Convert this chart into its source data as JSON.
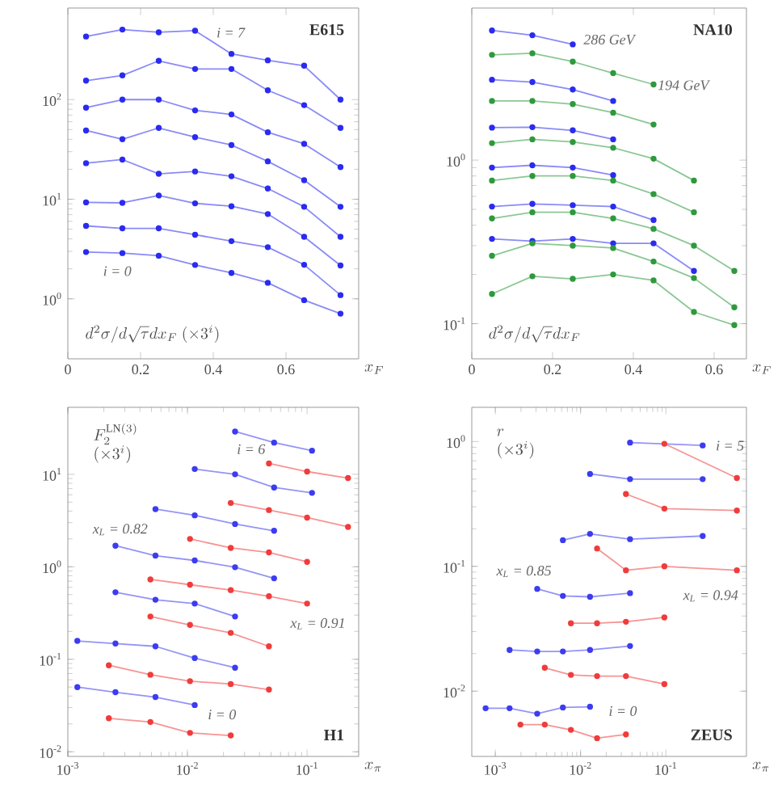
{
  "chart_data": [
    {
      "type": "line",
      "title": "E615",
      "ylabel": "d^2\\sigma/d\\sqrt{\\tau}dx_F\\ (\\times 3^i)",
      "xlabel": "x_F",
      "log": "y",
      "marker": "circle",
      "xlim": [
        0,
        0.8
      ],
      "ylim": [
        0.25,
        830
      ],
      "xticks": [
        0,
        0.2,
        0.4,
        0.6
      ],
      "yticks": [
        {
          "value": 1,
          "label": "10$^{0}$"
        },
        {
          "value": 10,
          "label": "10$^{1}$"
        },
        {
          "value": 100,
          "label": "10$^{2}$"
        }
      ],
      "annotations": [
        "i = 7",
        "i = 0"
      ],
      "series": [
        {
          "color": "#2b2bf0",
          "x": [
            0.05,
            0.15,
            0.25,
            0.35,
            0.45,
            0.55,
            0.65,
            0.75
          ],
          "values": [
            2.95,
            2.88,
            2.71,
            2.19,
            1.82,
            1.45,
            0.97,
            0.71
          ]
        },
        {
          "color": "#2b2bf0",
          "x": [
            0.05,
            0.15,
            0.25,
            0.35,
            0.45,
            0.55,
            0.65,
            0.75
          ],
          "values": [
            5.4,
            5.1,
            5.1,
            4.4,
            3.8,
            3.3,
            2.2,
            1.09
          ]
        },
        {
          "color": "#2b2bf0",
          "x": [
            0.05,
            0.15,
            0.25,
            0.35,
            0.45,
            0.55,
            0.65,
            0.75
          ],
          "values": [
            9.3,
            9.2,
            10.9,
            9.1,
            8.5,
            7.1,
            4.2,
            2.16
          ]
        },
        {
          "color": "#2b2bf0",
          "x": [
            0.05,
            0.15,
            0.25,
            0.35,
            0.45,
            0.55,
            0.65,
            0.75
          ],
          "values": [
            23,
            25,
            18,
            19,
            17,
            12.8,
            8.4,
            4.2
          ]
        },
        {
          "color": "#2b2bf0",
          "x": [
            0.05,
            0.15,
            0.25,
            0.35,
            0.45,
            0.55,
            0.65,
            0.75
          ],
          "values": [
            49,
            40,
            52,
            42,
            35,
            24,
            15.5,
            8.4
          ]
        },
        {
          "color": "#2b2bf0",
          "x": [
            0.05,
            0.15,
            0.25,
            0.35,
            0.45,
            0.55,
            0.65,
            0.75
          ],
          "values": [
            83,
            100,
            100,
            78,
            71,
            47,
            36,
            21
          ]
        },
        {
          "color": "#2b2bf0",
          "x": [
            0.05,
            0.15,
            0.25,
            0.35,
            0.45,
            0.55,
            0.65,
            0.75
          ],
          "values": [
            155,
            175,
            245,
            203,
            203,
            124,
            88,
            52
          ]
        },
        {
          "color": "#2b2bf0",
          "x": [
            0.05,
            0.15,
            0.25,
            0.35,
            0.45,
            0.55,
            0.65,
            0.75
          ],
          "values": [
            430,
            505,
            474,
            492,
            288,
            248,
            219,
            100
          ]
        }
      ]
    },
    {
      "type": "line",
      "title": "NA10",
      "ylabel": "d^2\\sigma/d\\sqrt{\\tau}dx_F",
      "xlabel": "x_F",
      "log": "y",
      "marker": "circle",
      "xlim": [
        0,
        0.68
      ],
      "ylim": [
        0.061,
        8.5
      ],
      "xticks": [
        0,
        0.2,
        0.4,
        0.6
      ],
      "yticks": [
        {
          "value": 0.1,
          "label": "10$^{-1}$"
        },
        {
          "value": 1,
          "label": "10$^{0}$"
        }
      ],
      "annotations": [
        "286 GeV",
        "194 GeV"
      ],
      "series": [
        {
          "color": "#2b2bf0",
          "x": [
            0.05,
            0.15,
            0.25
          ],
          "values": [
            6.2,
            5.8,
            5.1
          ]
        },
        {
          "color": "#2b2bf0",
          "x": [
            0.05,
            0.15,
            0.25,
            0.35
          ],
          "values": [
            3.1,
            3.0,
            2.7,
            2.3
          ]
        },
        {
          "color": "#2b2bf0",
          "x": [
            0.05,
            0.15,
            0.25,
            0.35
          ],
          "values": [
            1.58,
            1.59,
            1.52,
            1.34
          ]
        },
        {
          "color": "#2b2bf0",
          "x": [
            0.05,
            0.15,
            0.25,
            0.35
          ],
          "values": [
            0.9,
            0.93,
            0.9,
            0.81
          ]
        },
        {
          "color": "#2b2bf0",
          "x": [
            0.05,
            0.15,
            0.25,
            0.35,
            0.45
          ],
          "values": [
            0.52,
            0.54,
            0.53,
            0.52,
            0.43
          ]
        },
        {
          "color": "#2b2bf0",
          "x": [
            0.05,
            0.15,
            0.25,
            0.35,
            0.45,
            0.55
          ],
          "values": [
            0.33,
            0.32,
            0.33,
            0.31,
            0.31,
            0.21
          ]
        },
        {
          "color": "#2e9a3c",
          "x": [
            0.05,
            0.15,
            0.25,
            0.35,
            0.45
          ],
          "values": [
            4.4,
            4.5,
            4.0,
            3.4,
            2.9
          ]
        },
        {
          "color": "#2e9a3c",
          "x": [
            0.05,
            0.15,
            0.25,
            0.35,
            0.45
          ],
          "values": [
            2.3,
            2.3,
            2.2,
            1.95,
            1.65
          ]
        },
        {
          "color": "#2e9a3c",
          "x": [
            0.05,
            0.15,
            0.25,
            0.35,
            0.45,
            0.55
          ],
          "values": [
            1.27,
            1.34,
            1.29,
            1.19,
            1.02,
            0.75
          ]
        },
        {
          "color": "#2e9a3c",
          "x": [
            0.05,
            0.15,
            0.25,
            0.35,
            0.45,
            0.55
          ],
          "values": [
            0.75,
            0.8,
            0.8,
            0.75,
            0.62,
            0.48
          ]
        },
        {
          "color": "#2e9a3c",
          "x": [
            0.05,
            0.15,
            0.25,
            0.35,
            0.45,
            0.55,
            0.65
          ],
          "values": [
            0.44,
            0.48,
            0.48,
            0.44,
            0.38,
            0.3,
            0.21
          ]
        },
        {
          "color": "#2e9a3c",
          "x": [
            0.05,
            0.15,
            0.25,
            0.35,
            0.45,
            0.55,
            0.65
          ],
          "values": [
            0.26,
            0.31,
            0.3,
            0.29,
            0.24,
            0.19,
            0.126
          ]
        },
        {
          "color": "#2e9a3c",
          "x": [
            0.05,
            0.15,
            0.25,
            0.35,
            0.45,
            0.55,
            0.65
          ],
          "values": [
            0.152,
            0.195,
            0.188,
            0.2,
            0.184,
            0.118,
            0.098
          ]
        }
      ]
    },
    {
      "type": "line",
      "title": "H1",
      "ylabel": "\\begin{array}{l}F_2^{\\mathrm{LN}(3)}\\\\ (\\times 3^i)\\end{array}",
      "xlabel": "x_\\pi",
      "log": "xy",
      "marker": "circle",
      "xlim": [
        0.001,
        0.27
      ],
      "ylim": [
        0.0089,
        53
      ],
      "xticks": [
        {
          "value": 0.001,
          "label": "10$^{-3}$"
        },
        {
          "value": 0.01,
          "label": "10$^{-2}$"
        },
        {
          "value": 0.1,
          "label": "10$^{-1}$"
        }
      ],
      "yticks": [
        {
          "value": 0.01,
          "label": "10$^{-2}$"
        },
        {
          "value": 0.1,
          "label": "10$^{-1}$"
        },
        {
          "value": 1,
          "label": "10$^{0}$"
        },
        {
          "value": 10,
          "label": "10$^{1}$"
        }
      ],
      "annotations": [
        "i = 6",
        "x$_{L}$ = 0.82",
        "x$_{L}$ = 0.91",
        "i = 0"
      ],
      "series": [
        {
          "color": "#3c3cf0",
          "x": [
            0.0012,
            0.0025,
            0.0054,
            0.0115
          ],
          "values": [
            0.05,
            0.044,
            0.039,
            0.032
          ]
        },
        {
          "color": "#3c3cf0",
          "x": [
            0.0012,
            0.0025,
            0.0054,
            0.0115,
            0.025
          ],
          "values": [
            0.158,
            0.148,
            0.138,
            0.103,
            0.081
          ]
        },
        {
          "color": "#3c3cf0",
          "x": [
            0.0025,
            0.0054,
            0.0115,
            0.025
          ],
          "values": [
            0.53,
            0.44,
            0.4,
            0.29
          ]
        },
        {
          "color": "#3c3cf0",
          "x": [
            0.0025,
            0.0054,
            0.0115,
            0.025,
            0.053
          ],
          "values": [
            1.69,
            1.32,
            1.17,
            0.99,
            0.75
          ]
        },
        {
          "color": "#3c3cf0",
          "x": [
            0.0054,
            0.0115,
            0.025,
            0.053
          ],
          "values": [
            4.2,
            3.6,
            2.9,
            2.45
          ]
        },
        {
          "color": "#3c3cf0",
          "x": [
            0.0115,
            0.025,
            0.053,
            0.11
          ],
          "values": [
            11.4,
            10,
            7.2,
            6.3
          ]
        },
        {
          "color": "#3c3cf0",
          "x": [
            0.025,
            0.053,
            0.11
          ],
          "values": [
            29,
            22,
            18
          ]
        },
        {
          "color": "#f03c3c",
          "x": [
            0.0022,
            0.0049,
            0.0105,
            0.023
          ],
          "values": [
            0.023,
            0.021,
            0.016,
            0.015
          ]
        },
        {
          "color": "#f03c3c",
          "x": [
            0.0022,
            0.0049,
            0.0105,
            0.023,
            0.048
          ],
          "values": [
            0.086,
            0.068,
            0.058,
            0.054,
            0.047
          ]
        },
        {
          "color": "#f03c3c",
          "x": [
            0.0049,
            0.0105,
            0.023,
            0.048
          ],
          "values": [
            0.29,
            0.235,
            0.193,
            0.138
          ]
        },
        {
          "color": "#f03c3c",
          "x": [
            0.0049,
            0.0105,
            0.023,
            0.048,
            0.1
          ],
          "values": [
            0.73,
            0.64,
            0.56,
            0.48,
            0.4
          ]
        },
        {
          "color": "#f03c3c",
          "x": [
            0.0105,
            0.023,
            0.048,
            0.1
          ],
          "values": [
            2.0,
            1.6,
            1.43,
            1.13
          ]
        },
        {
          "color": "#f03c3c",
          "x": [
            0.023,
            0.048,
            0.1,
            0.22
          ],
          "values": [
            4.9,
            4.1,
            3.4,
            2.7
          ]
        },
        {
          "color": "#f03c3c",
          "x": [
            0.048,
            0.1,
            0.22
          ],
          "values": [
            13.1,
            10.7,
            9.1
          ]
        }
      ]
    },
    {
      "type": "line",
      "title": "ZEUS",
      "ylabel": "\\begin{array}{l}r\\\\ (\\times 3^i)\\end{array}",
      "xlabel": "x_\\pi",
      "log": "xy",
      "marker": "circle",
      "xlim": [
        0.00053,
        0.88
      ],
      "ylim": [
        0.003,
        1.88
      ],
      "xticks": [
        {
          "value": 0.001,
          "label": "10$^{-3}$"
        },
        {
          "value": 0.01,
          "label": "10$^{-2}$"
        },
        {
          "value": 0.1,
          "label": "10$^{-1}$"
        }
      ],
      "yticks": [
        {
          "value": 0.01,
          "label": "10$^{-2}$"
        },
        {
          "value": 0.1,
          "label": "10$^{-1}$"
        },
        {
          "value": 1,
          "label": "10$^{0}$"
        }
      ],
      "annotations": [
        "i = 5",
        "x$_{L}$ = 0.85",
        "x$_{L}$ = 0.94",
        "i = 0"
      ],
      "series": [
        {
          "color": "#3c3cf0",
          "x": [
            0.00077,
            0.00147,
            0.0031,
            0.0062,
            0.0129
          ],
          "values": [
            0.0073,
            0.0073,
            0.0066,
            0.0074,
            0.0075
          ]
        },
        {
          "color": "#3c3cf0",
          "x": [
            0.00147,
            0.0031,
            0.0062,
            0.0129,
            0.038
          ],
          "values": [
            0.0214,
            0.0208,
            0.0208,
            0.0214,
            0.023
          ]
        },
        {
          "color": "#3c3cf0",
          "x": [
            0.0031,
            0.0062,
            0.0129,
            0.038
          ],
          "values": [
            0.066,
            0.058,
            0.057,
            0.061
          ]
        },
        {
          "color": "#3c3cf0",
          "x": [
            0.0062,
            0.0129,
            0.038,
            0.27
          ],
          "values": [
            0.162,
            0.182,
            0.165,
            0.175
          ]
        },
        {
          "color": "#3c3cf0",
          "x": [
            0.0129,
            0.038,
            0.27
          ],
          "values": [
            0.55,
            0.5,
            0.5
          ]
        },
        {
          "color": "#3c3cf0",
          "x": [
            0.038,
            0.27
          ],
          "values": [
            0.98,
            0.93
          ]
        },
        {
          "color": "#f03c3c",
          "x": [
            0.00197,
            0.0038,
            0.0077,
            0.0156,
            0.034
          ],
          "values": [
            0.0054,
            0.0054,
            0.0049,
            0.0042,
            0.0045
          ]
        },
        {
          "color": "#f03c3c",
          "x": [
            0.0038,
            0.0077,
            0.0156,
            0.034,
            0.096
          ],
          "values": [
            0.0154,
            0.0135,
            0.0132,
            0.0132,
            0.0114
          ]
        },
        {
          "color": "#f03c3c",
          "x": [
            0.0077,
            0.0156,
            0.034,
            0.096
          ],
          "values": [
            0.035,
            0.035,
            0.036,
            0.039
          ]
        },
        {
          "color": "#f03c3c",
          "x": [
            0.0156,
            0.034,
            0.096,
            0.68
          ],
          "values": [
            0.139,
            0.093,
            0.1,
            0.093
          ]
        },
        {
          "color": "#f03c3c",
          "x": [
            0.034,
            0.096,
            0.68
          ],
          "values": [
            0.38,
            0.29,
            0.28
          ]
        },
        {
          "color": "#f03c3c",
          "x": [
            0.096,
            0.68
          ],
          "values": [
            0.96,
            0.51
          ]
        }
      ]
    }
  ]
}
